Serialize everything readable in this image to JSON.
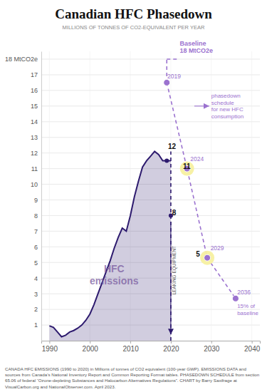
{
  "chart_data": {
    "type": "area",
    "title": "Canadian HFC Phasedown",
    "subtitle": "MILLIONS OF TONNES OF CO2-EQUIVALENT PER YEAR",
    "xlim": [
      1988,
      2042
    ],
    "ylim": [
      0,
      18.5
    ],
    "xticks": [
      1990,
      2000,
      2010,
      2020,
      2030,
      2040
    ],
    "yticks": [
      1,
      2,
      3,
      4,
      5,
      6,
      7,
      8,
      9,
      10,
      11,
      12,
      13,
      14,
      15,
      16,
      17,
      {
        "value": 18,
        "label": "18 MtCO2e"
      }
    ],
    "grid": true,
    "series": [
      {
        "color": "#2d1a6e",
        "x": [
          1990,
          1991,
          1992,
          1993,
          1994,
          1995,
          1996,
          1997,
          1998,
          1999,
          2000,
          2001,
          2002,
          2003,
          2004,
          2005,
          2006,
          2007,
          2008,
          2009,
          2010,
          2011,
          2012,
          2013,
          2014,
          2015,
          2016,
          2017,
          2018,
          2019,
          2020
        ],
        "values": [
          0.95,
          0.85,
          0.55,
          0.25,
          0.35,
          0.55,
          0.65,
          0.8,
          1.0,
          1.3,
          1.7,
          2.3,
          3.0,
          3.7,
          4.4,
          5.1,
          5.9,
          6.6,
          7.2,
          7.0,
          8.0,
          9.2,
          10.2,
          11.1,
          11.5,
          11.8,
          12.1,
          11.9,
          11.5,
          11.5,
          11.5
        ]
      },
      {
        "type": "line",
        "line_style": "dashed",
        "marker": "circle",
        "color": "#9b72cf",
        "x": [
          2019,
          2024,
          2029,
          2036
        ],
        "values": [
          16.5,
          11.0,
          5.3,
          2.7
        ]
      },
      {
        "type": "line",
        "line_style": "dashed",
        "color": "#9b72cf",
        "x": [
          2019,
          2022
        ],
        "values": [
          18,
          18
        ]
      },
      {
        "type": "line",
        "line_style": "dashed",
        "color": "#2d1a6e",
        "x": [
          2020,
          2020
        ],
        "values": [
          0,
          12.1
        ]
      },
      {
        "type": "line",
        "line_style": "dashed",
        "color": "#9b72cf",
        "x": [
          2019,
          2019
        ],
        "values": [
          16.5,
          18
        ]
      },
      {
        "type": "scatter",
        "marker": "halo",
        "color": "#f7f0a0",
        "x": [
          2024,
          2029
        ],
        "values": [
          11.0,
          5.3
        ]
      },
      {
        "type": "scatter",
        "marker": "circle",
        "color": "#2d1a6e",
        "x": [
          2019,
          2020
        ],
        "values": [
          11.5,
          8
        ]
      },
      {
        "type": "arrow",
        "color": "#2d1a6e",
        "x": [
          2020,
          2020
        ],
        "values": [
          7.6,
          0.4
        ]
      },
      {
        "type": "arrow",
        "color": "#9b72cf",
        "x": [
          2025.8,
          2029.5
        ],
        "values": [
          15.0,
          15.0
        ]
      }
    ],
    "annotations": [
      {
        "text": "Baseline\n18 MtCO2e",
        "x": 2022.2,
        "y": 18.3,
        "color": "#9b72cf"
      },
      {
        "text": "phasedown\nschedule\nfor new HFC\nconsumption",
        "x": 2030.0,
        "y": 15.0,
        "color": "#9b72cf"
      },
      {
        "text": "12",
        "x": 2019.3,
        "y": 12.15,
        "color": "#111111"
      },
      {
        "text": "8",
        "x": 2020.3,
        "y": 8.2,
        "color": "#111111"
      },
      {
        "text": "2019",
        "x": 2019.15,
        "y": 16.65,
        "color": "#9b72cf"
      },
      {
        "text": "11",
        "x": 2023.0,
        "y": 11.15,
        "color": "#111111"
      },
      {
        "text": "2024",
        "x": 2024.8,
        "y": 11.6,
        "color": "#9b72cf"
      },
      {
        "text": "5",
        "x": 2026.2,
        "y": 5.55,
        "color": "#111111"
      },
      {
        "text": "2029",
        "x": 2029.8,
        "y": 5.9,
        "color": "#9b72cf"
      },
      {
        "text": "2036",
        "x": 2036.4,
        "y": 3.1,
        "color": "#9b72cf"
      },
      {
        "text": "15% of\nbaseline",
        "x": 2036.4,
        "y": 2.4,
        "color": "#9b72cf"
      },
      {
        "text": "HFC\nemissions",
        "x": 2006,
        "y": 4.2,
        "color": "#7a5ca0"
      },
      {
        "text": "LEAKING EQUIPMENT",
        "x": 2020.35,
        "y": 4.5,
        "color": "#444444"
      }
    ],
    "footnote": "CANADA HFC EMISSIONS (1990 to 2020) in Millions of tonnes of CO2 equivalent (100-year GWP). EMISSIONS DATA and sources from Canada’s National Inventory Report and Common Reporting Format tables. PHASEDOWN SCHEDULE from section 65.06 of federal “Ozone-depleting Substances and Halocarbon Alternatives Regulations”.  CHART by Barry Saxifrage at VisualCarbon.org and NationalObserver.com. April 2023."
  }
}
